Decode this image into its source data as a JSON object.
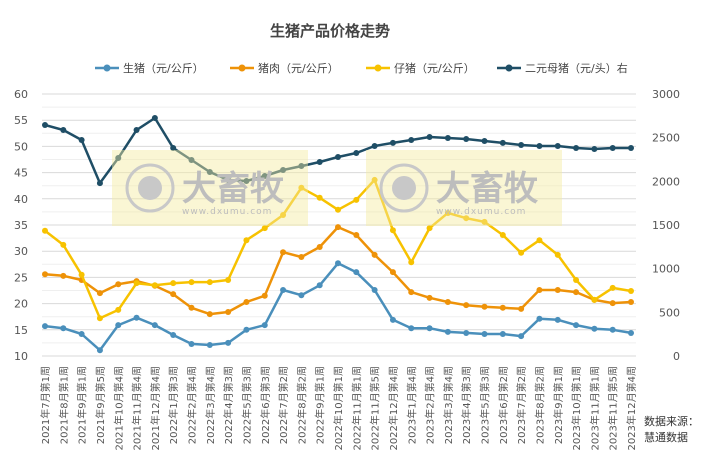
{
  "chart_data": {
    "type": "line",
    "title": "生猪产品价格走势",
    "categories": [
      "2021年7月第1周",
      "2021年8月第1周",
      "2021年9月第1周",
      "2021年9月第5周",
      "2021年10月第4周",
      "2021年11月第4周",
      "2021年12月第4周",
      "2022年1月第3周",
      "2022年2月第4周",
      "2022年3月第4周",
      "2022年4月第3周",
      "2022年5月第3周",
      "2022年6月第3周",
      "2022年7月第2周",
      "2022年8月第2周",
      "2022年9月第1周",
      "2022年10月第1周",
      "2022年11月第1周",
      "2022年11月第5周",
      "2022年12月第4周",
      "2023年1月第4周",
      "2023年2月第4周",
      "2023年3月第4周",
      "2023年4月第3周",
      "2023年5月第3周",
      "2023年6月第2周",
      "2023年7月第2周",
      "2023年8月第2周",
      "2023年9月第1周",
      "2023年10月第1周",
      "2023年11月第1周",
      "2023年11月第5周",
      "2023年12月第4周"
    ],
    "y_left": {
      "range": [
        10,
        60
      ],
      "ticks": [
        "10",
        "15",
        "20",
        "25",
        "30",
        "35",
        "40",
        "45",
        "50",
        "55",
        "60"
      ]
    },
    "y_right": {
      "range": [
        0,
        3000
      ],
      "ticks": [
        "0",
        "500",
        "1000",
        "1500",
        "2000",
        "2500",
        "3000"
      ]
    },
    "grid": true,
    "legend_position": "top",
    "series": [
      {
        "name": "生猪（元/公斤）",
        "axis": "left",
        "color": "#4a8fbb",
        "values": [
          15.7,
          15.3,
          14.2,
          11.1,
          15.9,
          17.3,
          15.9,
          14.0,
          12.3,
          12.1,
          12.5,
          15.0,
          15.9,
          22.6,
          21.6,
          23.5,
          27.7,
          26.0,
          22.6,
          16.9,
          15.3,
          15.3,
          14.6,
          14.4,
          14.2,
          14.2,
          13.8,
          17.1,
          16.9,
          15.9,
          15.2,
          15.0,
          14.4
        ]
      },
      {
        "name": "猪肉（元/公斤）",
        "axis": "left",
        "color": "#ee9208",
        "values": [
          25.6,
          25.3,
          24.5,
          22.0,
          23.7,
          24.3,
          23.4,
          21.8,
          19.2,
          18.0,
          18.4,
          20.3,
          21.5,
          29.8,
          28.9,
          30.8,
          34.6,
          33.1,
          29.3,
          26.0,
          22.2,
          21.1,
          20.3,
          19.7,
          19.4,
          19.2,
          19.0,
          22.6,
          22.6,
          22.2,
          20.7,
          20.1,
          20.3
        ]
      },
      {
        "name": "仔猪（元/公斤）",
        "axis": "left",
        "color": "#f7c200",
        "values": [
          33.9,
          31.2,
          25.5,
          17.2,
          18.8,
          23.9,
          23.5,
          23.9,
          24.1,
          24.1,
          24.5,
          32.1,
          34.4,
          36.9,
          42.1,
          40.2,
          37.9,
          39.8,
          43.6,
          34.0,
          27.9,
          34.4,
          37.3,
          36.3,
          35.6,
          33.1,
          29.7,
          32.1,
          29.3,
          24.5,
          20.7,
          23.0,
          22.4
        ]
      },
      {
        "name": "二元母猪（元/头）右",
        "axis": "right",
        "color": "#1f4e66",
        "values": [
          2645,
          2588,
          2473,
          1980,
          2267,
          2588,
          2725,
          2382,
          2244,
          2107,
          2015,
          2004,
          2061,
          2130,
          2175,
          2221,
          2279,
          2324,
          2405,
          2440,
          2473,
          2508,
          2496,
          2485,
          2462,
          2440,
          2416,
          2405,
          2405,
          2382,
          2370,
          2382,
          2382
        ]
      }
    ]
  },
  "watermark": {
    "brand": "大畜牧",
    "url": "www.dxumu.com"
  },
  "source": {
    "line1": "数据来源：",
    "line2": "慧通数据"
  }
}
